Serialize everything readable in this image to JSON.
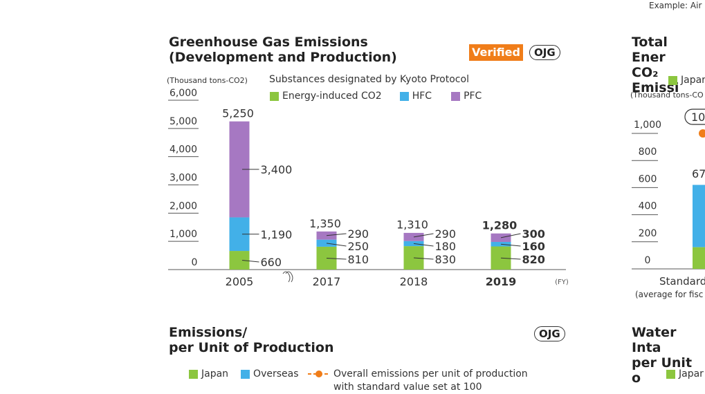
{
  "header_text": "Example: Air",
  "colors": {
    "energy": "#8cc63f",
    "hfc": "#42b0e8",
    "pfc": "#a678c2",
    "orange": "#f07d19"
  },
  "chart1": {
    "title_line1": "Greenhouse Gas Emissions",
    "title_line2": "(Development and Production)",
    "verified": "Verified",
    "ojg": "OJG",
    "unit": "(Thousand tons-CO2)",
    "kyoto": "Substances designated by Kyoto Protocol",
    "legend": [
      {
        "name": "Energy-induced CO2",
        "color": "#8cc63f"
      },
      {
        "name": "HFC",
        "color": "#42b0e8"
      },
      {
        "name": "PFC",
        "color": "#a678c2"
      }
    ],
    "fy": "(FY)"
  },
  "chart_data": [
    {
      "type": "bar",
      "stacked": true,
      "title": "Greenhouse Gas Emissions (Development and Production)",
      "ylabel": "(Thousand tons-CO2)",
      "xlabel": "(FY)",
      "categories": [
        "2005",
        "2017",
        "2018",
        "2019"
      ],
      "series": [
        {
          "name": "Energy-induced CO2",
          "values": [
            660,
            810,
            830,
            820
          ]
        },
        {
          "name": "HFC",
          "values": [
            1190,
            250,
            180,
            160
          ]
        },
        {
          "name": "PFC",
          "values": [
            3400,
            290,
            290,
            300
          ]
        }
      ],
      "totals": [
        5250,
        1350,
        1310,
        1280
      ],
      "total_labels": [
        "5,250",
        "1,350",
        "1,310",
        "1,280"
      ],
      "value_labels": [
        [
          "660",
          "1,190",
          "3,400"
        ],
        [
          "810",
          "250",
          "290"
        ],
        [
          "830",
          "180",
          "290"
        ],
        [
          "820",
          "160",
          "300"
        ]
      ],
      "yticks": [
        0,
        1000,
        2000,
        3000,
        4000,
        5000,
        6000
      ],
      "ytick_labels": [
        "0",
        "1,000",
        "2,000",
        "3,000",
        "4,000",
        "5,000",
        "6,000"
      ],
      "ylim": [
        0,
        6000
      ],
      "highlight_category": "2019",
      "axis_break_after": "2005",
      "grid": false,
      "legend_position": "top"
    },
    {
      "type": "bar",
      "partial": true,
      "title": "Total Ener... CO2 Emissi...",
      "ylabel": "(Thousand tons-CO",
      "yticks": [
        0,
        200,
        400,
        600,
        800,
        1000
      ],
      "ytick_labels": [
        "0",
        "200",
        "400",
        "600",
        "800",
        "1,000"
      ],
      "legend_visible": "Japar",
      "visible_values": [
        "10",
        "67"
      ],
      "xlabel_visible": "Standard",
      "xlabel_sub_visible": "(average for fisc"
    }
  ],
  "chart2": {
    "title_line1": "Total Ener",
    "title_line2": "CO₂ Emissi",
    "legend_japan": "Japar",
    "unit": "(Thousand tons-CO",
    "label_top": "10",
    "label_bar": "67",
    "x_label": "Standard",
    "x_sub": "(average for fisc"
  },
  "chart3": {
    "title_line1": "Emissions/",
    "title_line2": "per Unit of Production",
    "ojg": "OJG",
    "legend_japan": "Japan",
    "legend_overseas": "Overseas",
    "legend_overall_line1": "Overall emissions per unit of production",
    "legend_overall_line2": "with standard value set at 100"
  },
  "chart4": {
    "title_line1": "Water Inta",
    "title_line2": "per Unit o",
    "legend_japan": "Japar"
  }
}
